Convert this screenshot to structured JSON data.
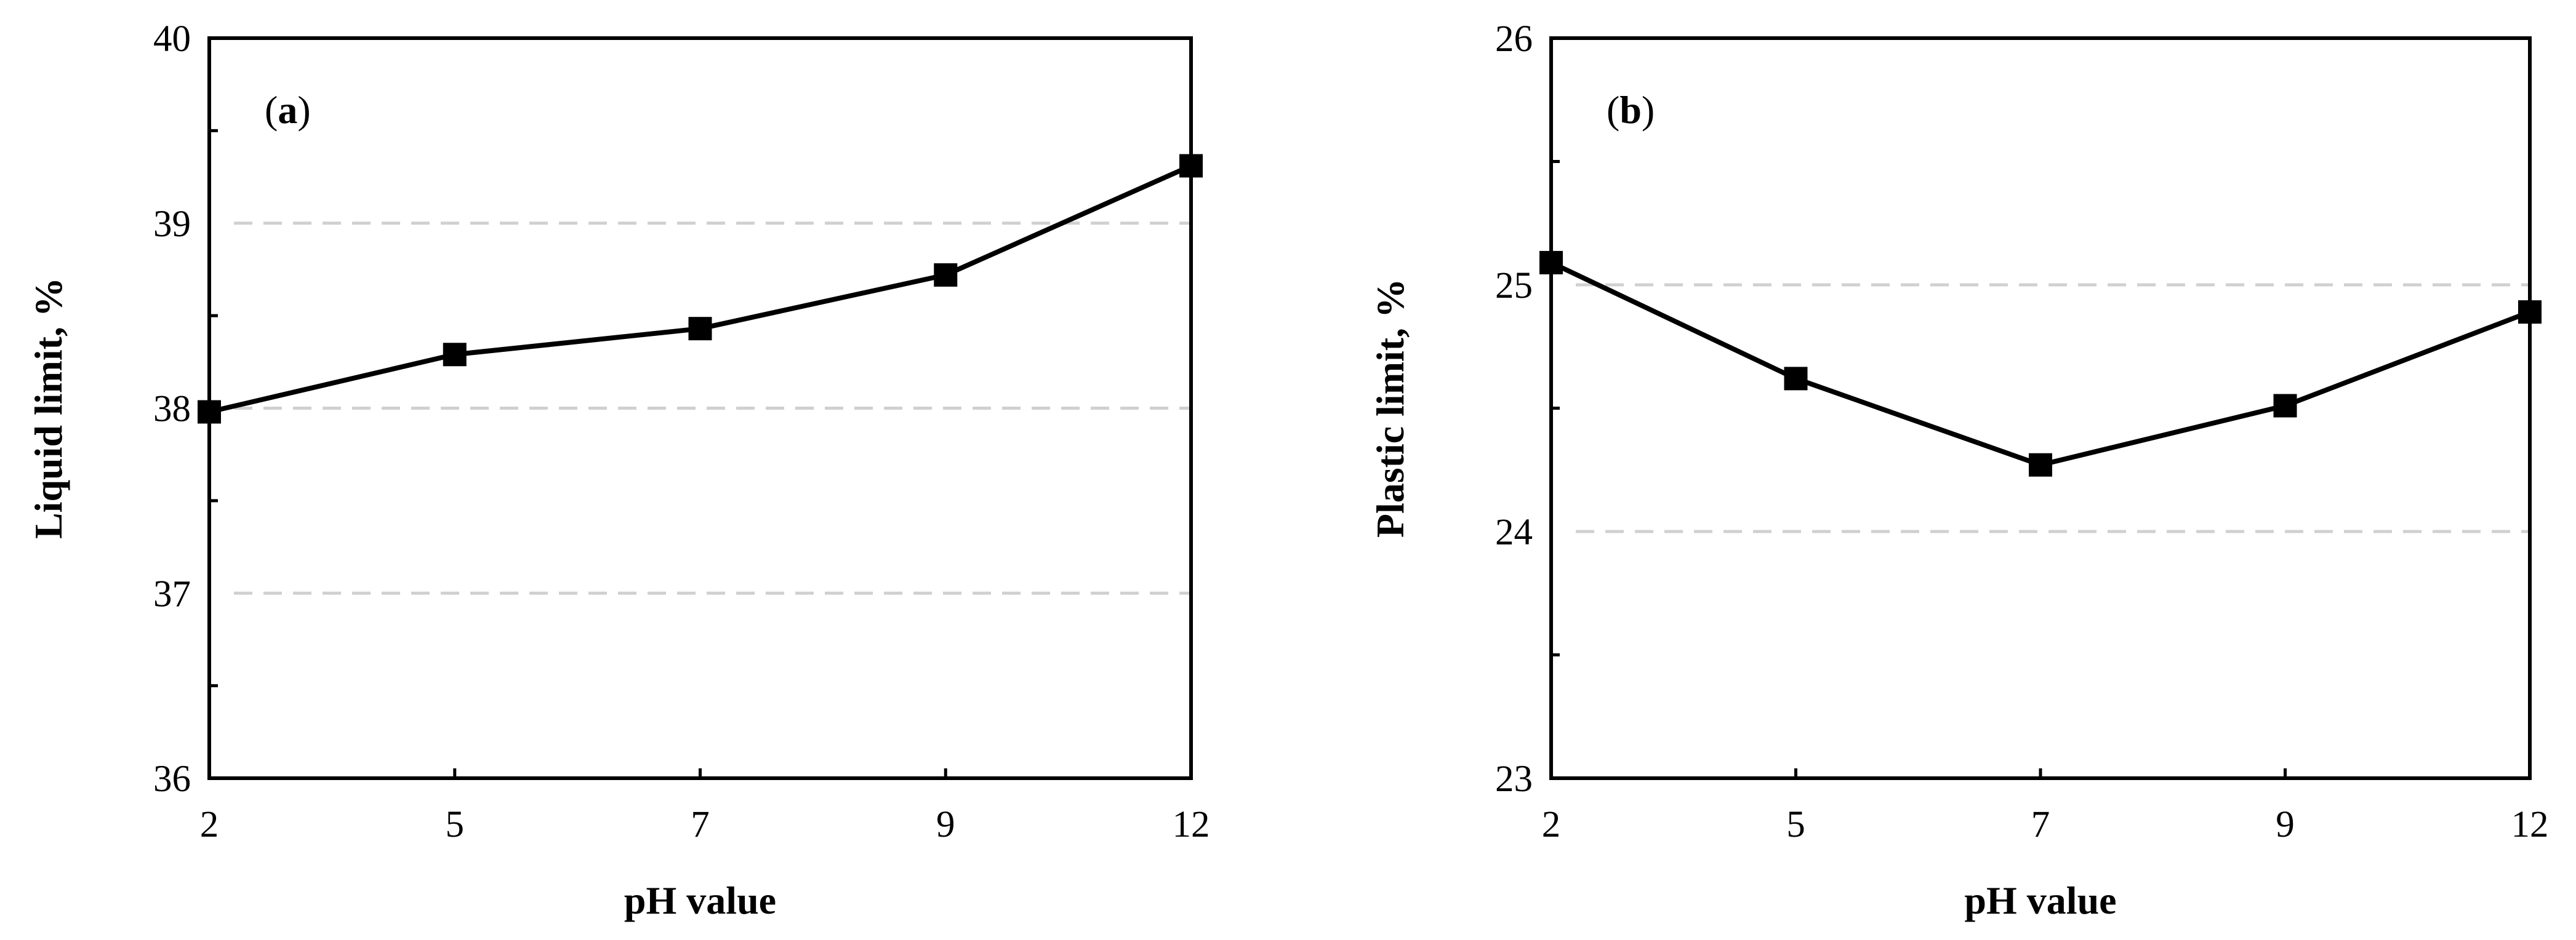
{
  "chart_data": [
    {
      "type": "line",
      "panel_label": "a",
      "xlabel": "pH value",
      "ylabel": "Liquid limit, %",
      "categories": [
        "2",
        "5",
        "7",
        "9",
        "12"
      ],
      "series": [
        {
          "values": [
            37.98,
            38.29,
            38.43,
            38.72,
            39.31
          ]
        }
      ],
      "ylim": [
        36,
        40
      ],
      "yticks": [
        "36",
        "37",
        "38",
        "39",
        "40"
      ],
      "y_minor_step": 0.5,
      "grid_values": [
        37,
        38,
        39
      ],
      "grid": true,
      "marker": "square",
      "line_color": "#000000",
      "grid_color": "#d0d0d0"
    },
    {
      "type": "line",
      "panel_label": "b",
      "xlabel": "pH value",
      "ylabel": "Plastic limit, %",
      "categories": [
        "2",
        "5",
        "7",
        "9",
        "12"
      ],
      "series": [
        {
          "values": [
            25.09,
            24.62,
            24.27,
            24.51,
            24.89
          ]
        }
      ],
      "ylim": [
        23,
        26
      ],
      "yticks": [
        "23",
        "24",
        "25",
        "26"
      ],
      "y_minor_step": 0.5,
      "grid_values": [
        24,
        25
      ],
      "grid": true,
      "marker": "square",
      "line_color": "#000000",
      "grid_color": "#d0d0d0"
    }
  ]
}
